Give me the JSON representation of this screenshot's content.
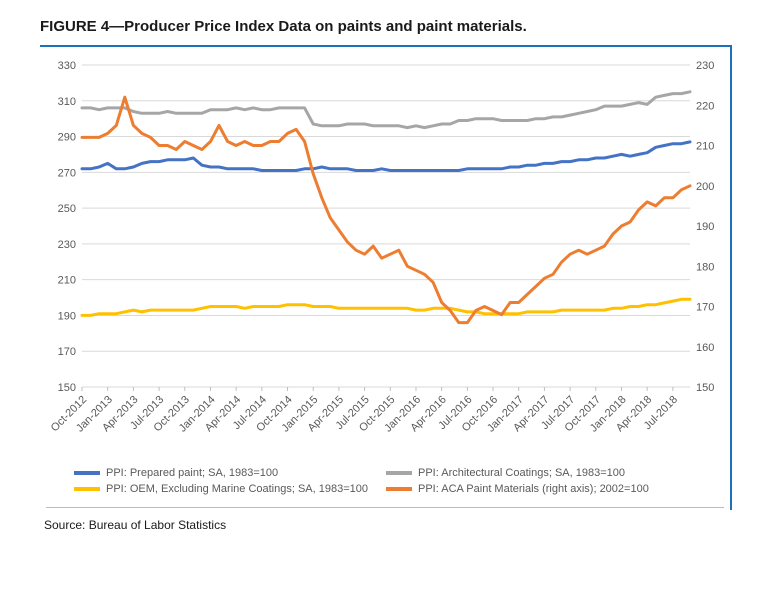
{
  "title": "FIGURE 4—Producer Price Index Data on paints and paint materials.",
  "source": "Source: Bureau of Labor Statistics",
  "chart": {
    "type": "line",
    "background_color": "#ffffff",
    "grid_color": "#d9d9d9",
    "axis_label_color": "#595959",
    "axis_fontsize": 11,
    "line_width": 3,
    "y_left": {
      "min": 150,
      "max": 330,
      "step": 20
    },
    "y_right": {
      "min": 150,
      "max": 230,
      "step": 10
    },
    "x_labels": [
      "Oct-2012",
      "Jan-2013",
      "Apr-2013",
      "Jul-2013",
      "Oct-2013",
      "Jan-2014",
      "Apr-2014",
      "Jul-2014",
      "Oct-2014",
      "Jan-2015",
      "Apr-2015",
      "Jul-2015",
      "Oct-2015",
      "Jan-2016",
      "Apr-2016",
      "Jul-2016",
      "Oct-2016",
      "Jan-2017",
      "Apr-2017",
      "Jul-2017",
      "Oct-2017",
      "Jan-2018",
      "Apr-2018",
      "Jul-2018"
    ],
    "series": [
      {
        "id": "prepared_paint",
        "label": "PPI: Prepared paint; SA, 1983=100",
        "color": "#4472c4",
        "axis": "left",
        "values": [
          272,
          272,
          273,
          275,
          272,
          272,
          273,
          275,
          276,
          276,
          277,
          277,
          277,
          278,
          274,
          273,
          273,
          272,
          272,
          272,
          272,
          271,
          271,
          271,
          271,
          271,
          272,
          272,
          273,
          272,
          272,
          272,
          271,
          271,
          271,
          272,
          271,
          271,
          271,
          271,
          271,
          271,
          271,
          271,
          271,
          272,
          272,
          272,
          272,
          272,
          273,
          273,
          274,
          274,
          275,
          275,
          276,
          276,
          277,
          277,
          278,
          278,
          279,
          280,
          279,
          280,
          281,
          284,
          285,
          286,
          286,
          287
        ]
      },
      {
        "id": "architectural",
        "label": "PPI: Architectural Coatings; SA, 1983=100",
        "color": "#a6a6a6",
        "axis": "left",
        "values": [
          306,
          306,
          305,
          306,
          306,
          306,
          304,
          303,
          303,
          303,
          304,
          303,
          303,
          303,
          303,
          305,
          305,
          305,
          306,
          305,
          306,
          305,
          305,
          306,
          306,
          306,
          306,
          297,
          296,
          296,
          296,
          297,
          297,
          297,
          296,
          296,
          296,
          296,
          295,
          296,
          295,
          296,
          297,
          297,
          299,
          299,
          300,
          300,
          300,
          299,
          299,
          299,
          299,
          300,
          300,
          301,
          301,
          302,
          303,
          304,
          305,
          307,
          307,
          307,
          308,
          309,
          308,
          312,
          313,
          314,
          314,
          315
        ]
      },
      {
        "id": "oem",
        "label": "PPI: OEM, Excluding Marine Coatings; SA, 1983=100",
        "color": "#ffc000",
        "axis": "left",
        "values": [
          190,
          190,
          191,
          191,
          191,
          192,
          193,
          192,
          193,
          193,
          193,
          193,
          193,
          193,
          194,
          195,
          195,
          195,
          195,
          194,
          195,
          195,
          195,
          195,
          196,
          196,
          196,
          195,
          195,
          195,
          194,
          194,
          194,
          194,
          194,
          194,
          194,
          194,
          194,
          193,
          193,
          194,
          194,
          194,
          193,
          192,
          192,
          191,
          191,
          191,
          191,
          191,
          192,
          192,
          192,
          192,
          193,
          193,
          193,
          193,
          193,
          193,
          194,
          194,
          195,
          195,
          196,
          196,
          197,
          198,
          199,
          199
        ]
      },
      {
        "id": "aca_materials",
        "label": "PPI: ACA Paint Materials (right axis); 2002=100",
        "color": "#ed7d31",
        "axis": "right",
        "values": [
          212,
          212,
          212,
          213,
          215,
          222,
          215,
          213,
          212,
          210,
          210,
          209,
          211,
          210,
          209,
          211,
          215,
          211,
          210,
          211,
          210,
          210,
          211,
          211,
          213,
          214,
          211,
          203,
          197,
          192,
          189,
          186,
          184,
          183,
          185,
          182,
          183,
          184,
          180,
          179,
          178,
          176,
          171,
          169,
          166,
          166,
          169,
          170,
          169,
          168,
          171,
          171,
          173,
          175,
          177,
          178,
          181,
          183,
          184,
          183,
          184,
          185,
          188,
          190,
          191,
          194,
          196,
          195,
          197,
          197,
          199,
          200
        ]
      }
    ],
    "legend_order": [
      "prepared_paint",
      "architectural",
      "oem",
      "aca_materials"
    ]
  }
}
